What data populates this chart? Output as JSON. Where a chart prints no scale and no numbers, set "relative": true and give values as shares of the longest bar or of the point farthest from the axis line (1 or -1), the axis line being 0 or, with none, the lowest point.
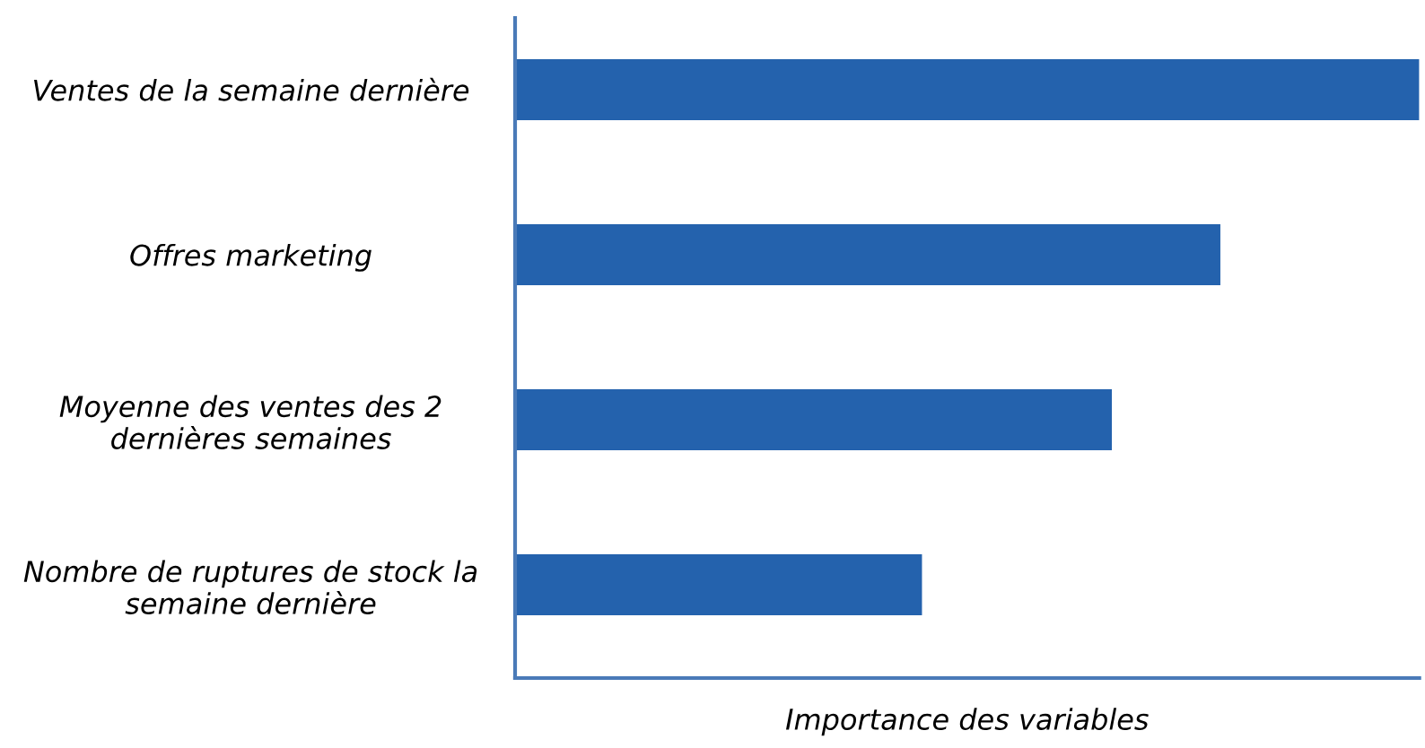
{
  "chart_data": {
    "type": "bar",
    "orientation": "horizontal",
    "relative": true,
    "xlabel": "Importance des variables",
    "categories": [
      "Ventes de la semaine dernière",
      "Offres marketing",
      "Moyenne des ventes des 2\ndernières semaines",
      "Nombre de ruptures de stock la\nsemaine dernière"
    ],
    "values": [
      1,
      0.78,
      0.66,
      0.45
    ],
    "color": "#2462ad",
    "grid": false,
    "legend": false
  }
}
